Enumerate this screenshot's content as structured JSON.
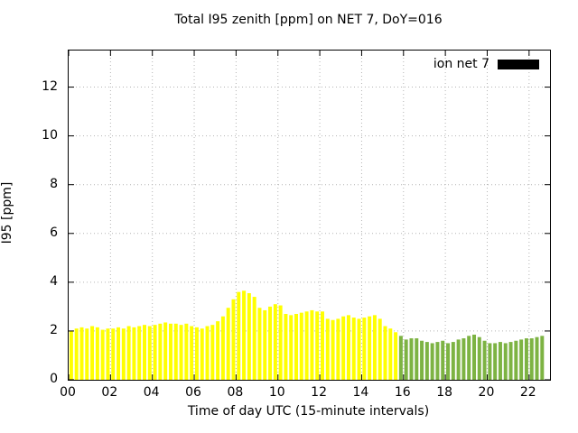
{
  "legend": {
    "label": "ion net 7",
    "swatch_color": "#000000"
  },
  "chart_data": {
    "type": "bar",
    "title": "Total I95 zenith [ppm] on NET 7, DoY=016",
    "xlabel": "Time of day UTC (15-minute intervals)",
    "ylabel": "I95 [ppm]",
    "xlim": [
      0,
      23
    ],
    "ylim": [
      0,
      13.5
    ],
    "x_ticks": [
      0,
      2,
      4,
      6,
      8,
      10,
      12,
      14,
      16,
      18,
      20,
      22
    ],
    "x_tick_labels": [
      "00",
      "02",
      "04",
      "06",
      "08",
      "10",
      "12",
      "14",
      "16",
      "18",
      "20",
      "22"
    ],
    "y_ticks": [
      0,
      2,
      4,
      6,
      8,
      10,
      12
    ],
    "y_tick_labels": [
      "0",
      "2",
      "4",
      "6",
      "8",
      "10",
      "12"
    ],
    "start_hour": 0,
    "interval_hours": 0.25,
    "grid": "dotted",
    "legend_position": "top-right",
    "series": [
      {
        "name": "ion net 7",
        "values": [
          2.0,
          2.1,
          2.15,
          2.1,
          2.2,
          2.15,
          2.05,
          2.1,
          2.1,
          2.15,
          2.1,
          2.2,
          2.15,
          2.2,
          2.25,
          2.2,
          2.25,
          2.3,
          2.35,
          2.3,
          2.3,
          2.25,
          2.3,
          2.2,
          2.15,
          2.1,
          2.2,
          2.25,
          2.4,
          2.6,
          2.95,
          3.3,
          3.6,
          3.65,
          3.55,
          3.4,
          2.95,
          2.85,
          3.0,
          3.1,
          3.05,
          2.7,
          2.65,
          2.7,
          2.75,
          2.8,
          2.85,
          2.8,
          2.8,
          2.5,
          2.45,
          2.5,
          2.6,
          2.65,
          2.55,
          2.5,
          2.55,
          2.6,
          2.65,
          2.5,
          2.2,
          2.1,
          1.95,
          1.8,
          1.65,
          1.7,
          1.7,
          1.6,
          1.55,
          1.5,
          1.55,
          1.6,
          1.5,
          1.55,
          1.65,
          1.7,
          1.8,
          1.85,
          1.75,
          1.6,
          1.5,
          1.5,
          1.55,
          1.5,
          1.55,
          1.6,
          1.65,
          1.7,
          1.7,
          1.75,
          1.8
        ]
      }
    ],
    "yellow_count": 63,
    "colors": {
      "daytime_yellow": "#ffff00",
      "evening_green": "#7db343",
      "grid": "#b4b4b4",
      "frame": "#000000"
    }
  }
}
